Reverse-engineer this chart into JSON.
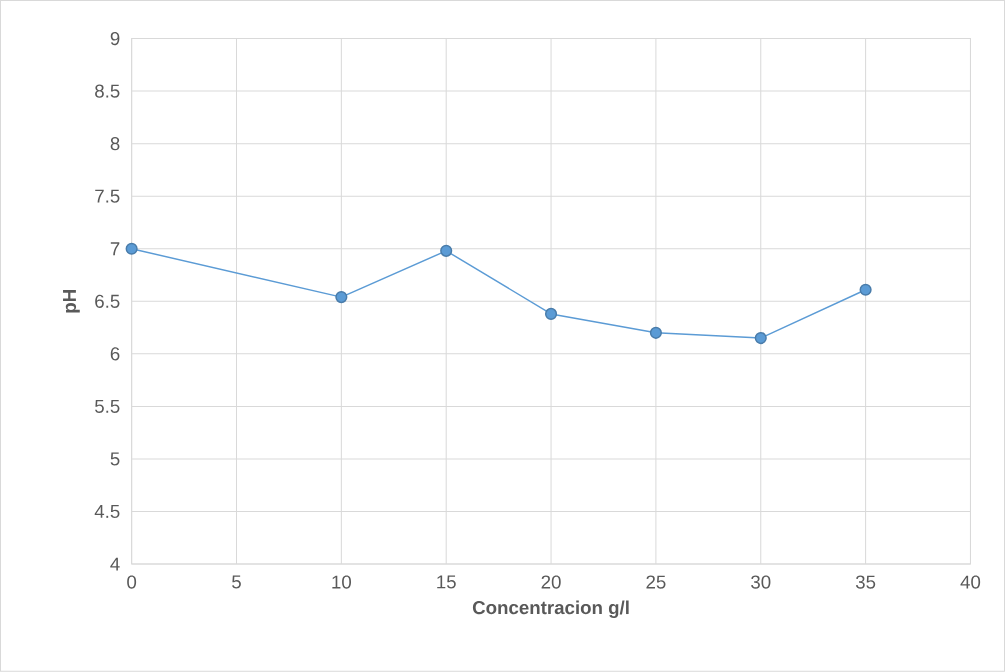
{
  "chart_data": {
    "type": "line",
    "xlabel": "Concentracion g/l",
    "ylabel": "pH",
    "x": [
      0,
      10,
      15,
      20,
      25,
      30,
      35
    ],
    "series": [
      {
        "color": "#5b9bd5",
        "values": [
          7.0,
          6.54,
          6.98,
          6.38,
          6.2,
          6.15,
          6.61
        ]
      }
    ],
    "xlim": [
      0,
      40
    ],
    "ylim": [
      4,
      9
    ],
    "xticks": [
      0,
      5,
      10,
      15,
      20,
      25,
      30,
      35,
      40
    ],
    "yticks": [
      4,
      4.5,
      5,
      5.5,
      6,
      6.5,
      7,
      7.5,
      8,
      8.5,
      9
    ],
    "grid": true,
    "marker": "circle",
    "line_style": "solid"
  }
}
